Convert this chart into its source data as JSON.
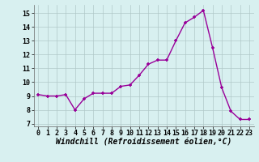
{
  "x": [
    0,
    1,
    2,
    3,
    4,
    5,
    6,
    7,
    8,
    9,
    10,
    11,
    12,
    13,
    14,
    15,
    16,
    17,
    18,
    19,
    20,
    21,
    22,
    23
  ],
  "y": [
    9.1,
    9.0,
    9.0,
    9.1,
    8.0,
    8.8,
    9.2,
    9.2,
    9.2,
    9.7,
    9.8,
    10.5,
    11.3,
    11.6,
    11.6,
    13.0,
    14.3,
    14.7,
    15.2,
    12.5,
    9.6,
    7.9,
    7.3,
    7.3
  ],
  "line_color": "#990099",
  "marker": "D",
  "marker_size": 2.5,
  "bg_color": "#d8f0f0",
  "grid_color": "#b0c8c8",
  "xlabel": "Windchill (Refroidissement éolien,°C)",
  "ylim": [
    6.8,
    15.6
  ],
  "xlim": [
    -0.5,
    23.5
  ],
  "yticks": [
    7,
    8,
    9,
    10,
    11,
    12,
    13,
    14,
    15
  ],
  "xticks": [
    0,
    1,
    2,
    3,
    4,
    5,
    6,
    7,
    8,
    9,
    10,
    11,
    12,
    13,
    14,
    15,
    16,
    17,
    18,
    19,
    20,
    21,
    22,
    23
  ],
  "tick_fontsize": 6,
  "xlabel_fontsize": 7,
  "line_width": 1.0
}
